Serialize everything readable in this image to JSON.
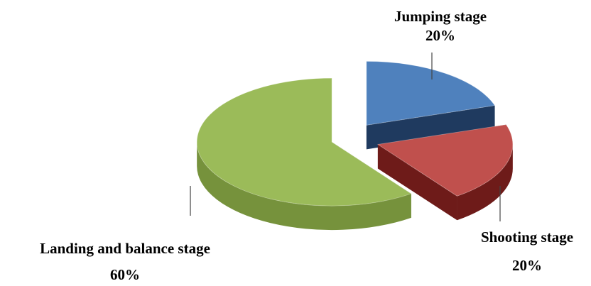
{
  "chart_data": {
    "type": "pie",
    "style": "3d-exploded",
    "legend": "none",
    "slices": [
      {
        "label": "Jumping stage",
        "value": 20,
        "value_label": "20%",
        "color": "#4f81bd",
        "side_color": "#1f3a5f"
      },
      {
        "label": "Shooting stage",
        "value": 20,
        "value_label": "20%",
        "color": "#c0504d",
        "side_color": "#6e1b19"
      },
      {
        "label": "Landing and balance stage",
        "value": 60,
        "value_label": "60%",
        "color": "#9bbb59",
        "side_color": "#76923c"
      }
    ]
  }
}
